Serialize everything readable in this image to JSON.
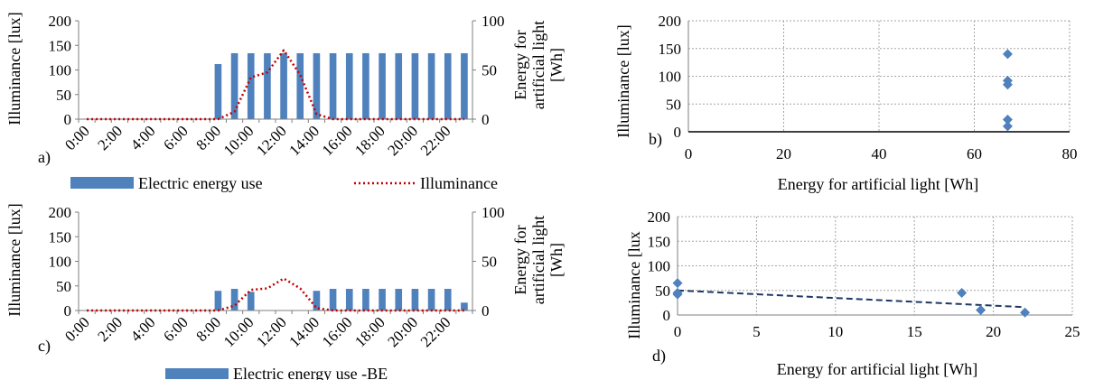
{
  "colors": {
    "bar": "#4F81BD",
    "illuminance_line": "#C00000",
    "point": "#4F81BD",
    "trend": "#1F3864",
    "grid": "#A6A6A6",
    "axis": "#7F7F7F"
  },
  "chart_data": [
    {
      "panel": "a)",
      "type": "bar+line",
      "ylabel": "Illuminance [lux]",
      "y2label": "Energy for artificial light [Wh]",
      "ylim": [
        0,
        200
      ],
      "y2lim": [
        0,
        100
      ],
      "yticks": [
        "0",
        "50",
        "100",
        "150",
        "200"
      ],
      "y2ticks": [
        "0",
        "50",
        "100"
      ],
      "xtick_labels": [
        "0:00",
        "2:00",
        "4:00",
        "6:00",
        "8:00",
        "10:00",
        "12:00",
        "14:00",
        "16:00",
        "18:00",
        "20:00",
        "22:00"
      ],
      "hours": [
        0,
        1,
        2,
        3,
        4,
        5,
        6,
        7,
        8,
        9,
        10,
        11,
        12,
        13,
        14,
        15,
        16,
        17,
        18,
        19,
        20,
        21,
        22,
        23
      ],
      "series": [
        {
          "name": "Electric energy use",
          "kind": "bar",
          "axis": "right",
          "values": [
            0,
            0,
            0,
            0,
            0,
            0,
            0,
            0,
            56,
            67,
            67,
            67,
            67,
            67,
            67,
            67,
            67,
            67,
            67,
            67,
            67,
            67,
            67,
            67
          ]
        },
        {
          "name": "Illuminance",
          "kind": "line",
          "axis": "left",
          "values": [
            0,
            0,
            0,
            0,
            0,
            0,
            0,
            0,
            0,
            15,
            85,
            95,
            140,
            90,
            10,
            0,
            0,
            0,
            0,
            0,
            0,
            0,
            0,
            0
          ]
        }
      ],
      "legend_position": "bottom"
    },
    {
      "panel": "b)",
      "type": "scatter",
      "xlabel": "Energy for artificial light [Wh]",
      "ylabel": "Illuminance [lux]",
      "xlim": [
        0,
        80
      ],
      "ylim": [
        0,
        200
      ],
      "xticks": [
        "0",
        "20",
        "40",
        "60",
        "80"
      ],
      "yticks": [
        "0",
        "50",
        "100",
        "150",
        "200"
      ],
      "grid": true,
      "points": [
        {
          "x": 67,
          "y": 140
        },
        {
          "x": 67,
          "y": 92
        },
        {
          "x": 67,
          "y": 85
        },
        {
          "x": 67,
          "y": 22
        },
        {
          "x": 67,
          "y": 10
        }
      ]
    },
    {
      "panel": "c)",
      "type": "bar+line",
      "ylabel": "Illuminance [lux]",
      "y2label": "Energy for artificial light [Wh]",
      "ylim": [
        0,
        200
      ],
      "y2lim": [
        0,
        100
      ],
      "yticks": [
        "0",
        "50",
        "100",
        "150",
        "200"
      ],
      "y2ticks": [
        "0",
        "50",
        "100"
      ],
      "xtick_labels": [
        "0:00",
        "2:00",
        "4:00",
        "6:00",
        "8:00",
        "10:00",
        "12:00",
        "14:00",
        "16:00",
        "18:00",
        "20:00",
        "22:00"
      ],
      "hours": [
        0,
        1,
        2,
        3,
        4,
        5,
        6,
        7,
        8,
        9,
        10,
        11,
        12,
        13,
        14,
        15,
        16,
        17,
        18,
        19,
        20,
        21,
        22,
        23
      ],
      "series": [
        {
          "name": "Electric energy use -BE",
          "kind": "bar",
          "axis": "right",
          "values": [
            0,
            0,
            0,
            0,
            0,
            0,
            0,
            0,
            20,
            22,
            19,
            0,
            0,
            0,
            20,
            22,
            22,
            22,
            22,
            22,
            22,
            22,
            22,
            8
          ]
        },
        {
          "name": "",
          "kind": "line",
          "axis": "left",
          "values": [
            0,
            0,
            0,
            0,
            0,
            0,
            0,
            0,
            0,
            10,
            42,
            45,
            65,
            45,
            5,
            0,
            0,
            0,
            0,
            0,
            0,
            0,
            0,
            0
          ]
        }
      ],
      "legend_position": "bottom"
    },
    {
      "panel": "d)",
      "type": "scatter",
      "xlabel": "Energy for artificial light  [Wh]",
      "ylabel": "Illuminance [lux",
      "xlim": [
        0,
        25
      ],
      "ylim": [
        0,
        200
      ],
      "xticks": [
        "0",
        "5",
        "10",
        "15",
        "20",
        "25"
      ],
      "yticks": [
        "0",
        "50",
        "100",
        "150",
        "200"
      ],
      "grid": true,
      "points": [
        {
          "x": 0,
          "y": 65
        },
        {
          "x": 0,
          "y": 45
        },
        {
          "x": 0,
          "y": 42
        },
        {
          "x": 18,
          "y": 45
        },
        {
          "x": 19.2,
          "y": 10
        },
        {
          "x": 22,
          "y": 5
        }
      ],
      "trendline": {
        "x": [
          0,
          22
        ],
        "y": [
          50,
          16
        ]
      }
    }
  ]
}
